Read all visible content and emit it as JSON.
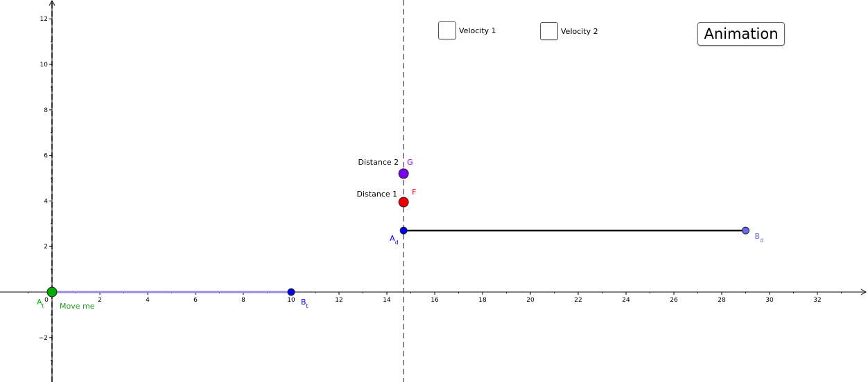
{
  "checkboxes": [
    {
      "label": "Velocity 1",
      "checked": false
    },
    {
      "label": "Velocity 2",
      "checked": false
    }
  ],
  "animation_button": {
    "label": "Animation"
  },
  "axes": {
    "x_ticks": [
      0,
      2,
      4,
      6,
      8,
      10,
      12,
      14,
      16,
      18,
      20,
      22,
      24,
      26,
      28,
      30,
      32
    ],
    "y_ticks": [
      12,
      10,
      8,
      6,
      4,
      2,
      -2
    ],
    "x_range": [
      -2.1,
      34.1
    ],
    "y_range": [
      -3.9,
      12.85
    ],
    "vertical_dashed_line_x": 14.7
  },
  "points": {
    "A_t": {
      "name": "A",
      "sub": "t",
      "x": 0,
      "y": 0,
      "color": "#00aa00",
      "caption": "Move me",
      "caption_color": "#1e9e1e"
    },
    "B_t": {
      "name": "B",
      "sub": "t",
      "x": 10,
      "y": 0,
      "color": "#0000ee"
    },
    "A_d": {
      "name": "A",
      "sub": "d",
      "x": 14.7,
      "y": 2.7,
      "color": "#0000ee"
    },
    "B_d": {
      "name": "B",
      "sub": "d",
      "x": 29,
      "y": 2.7,
      "color": "#6666ee"
    },
    "F": {
      "name": "F",
      "x": 14.7,
      "y": 3.95,
      "color": "#ee0000",
      "caption": "Distance 1"
    },
    "G": {
      "name": "G",
      "x": 14.7,
      "y": 5.2,
      "color": "#7a00ee",
      "caption": "Distance 2"
    }
  },
  "segments": {
    "time_segment_color": "#9a8ae6",
    "distance_segment_color": "#000000"
  }
}
